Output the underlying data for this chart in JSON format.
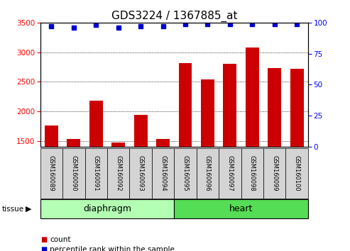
{
  "title": "GDS3224 / 1367885_at",
  "samples": [
    "GSM160089",
    "GSM160090",
    "GSM160091",
    "GSM160092",
    "GSM160093",
    "GSM160094",
    "GSM160095",
    "GSM160096",
    "GSM160097",
    "GSM160098",
    "GSM160099",
    "GSM160100"
  ],
  "counts": [
    1760,
    1530,
    2175,
    1470,
    1940,
    1530,
    2820,
    2540,
    2800,
    3080,
    2730,
    2720
  ],
  "percentiles": [
    97,
    96,
    98,
    96,
    97,
    97,
    99,
    99,
    99,
    99,
    99,
    99
  ],
  "groups": [
    {
      "name": "diaphragm",
      "start": 0,
      "end": 6,
      "color": "#b3ffb3"
    },
    {
      "name": "heart",
      "start": 6,
      "end": 12,
      "color": "#55dd55"
    }
  ],
  "bar_color": "#cc0000",
  "dot_color": "#0000cc",
  "ylim_left": [
    1400,
    3500
  ],
  "ylim_right": [
    0,
    100
  ],
  "yticks_left": [
    1500,
    2000,
    2500,
    3000,
    3500
  ],
  "yticks_right": [
    0,
    25,
    50,
    75,
    100
  ],
  "bar_width": 0.6,
  "title_fontsize": 11,
  "tick_fontsize": 7.5,
  "label_box_color": "#d4d4d4"
}
